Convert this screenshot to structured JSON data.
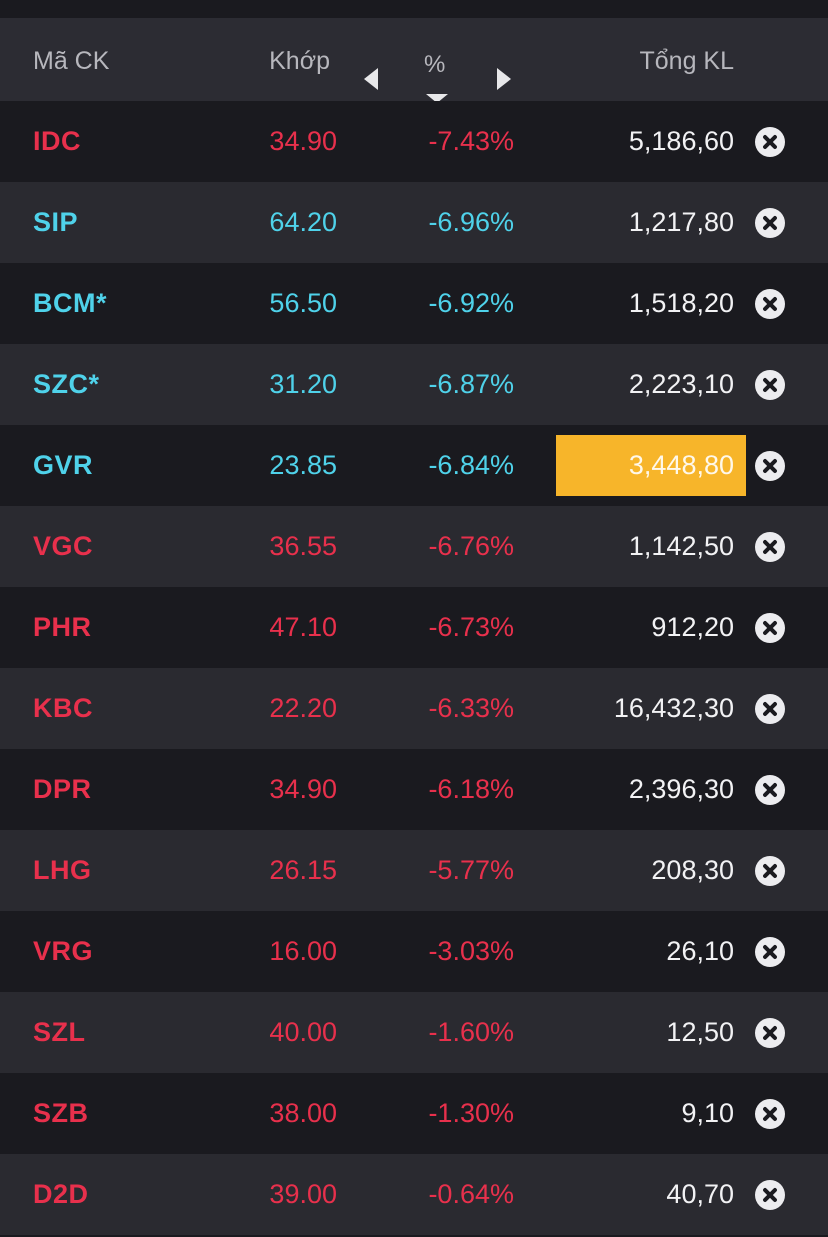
{
  "header": {
    "symbol": "Mã CK",
    "price": "Khớp",
    "percent": "%",
    "total": "Tổng KL"
  },
  "colors": {
    "down": "#e8304c",
    "floor": "#4fd2ea",
    "highlight": "#f7b52a"
  },
  "rows": [
    {
      "symbol": "IDC",
      "price": "34.90",
      "pct": "-7.43%",
      "total": "5,186,60",
      "status": "down"
    },
    {
      "symbol": "SIP",
      "price": "64.20",
      "pct": "-6.96%",
      "total": "1,217,80",
      "status": "floor"
    },
    {
      "symbol": "BCM*",
      "price": "56.50",
      "pct": "-6.92%",
      "total": "1,518,20",
      "status": "floor"
    },
    {
      "symbol": "SZC*",
      "price": "31.20",
      "pct": "-6.87%",
      "total": "2,223,10",
      "status": "floor"
    },
    {
      "symbol": "GVR",
      "price": "23.85",
      "pct": "-6.84%",
      "total": "3,448,80",
      "status": "floor",
      "highlighted": true
    },
    {
      "symbol": "VGC",
      "price": "36.55",
      "pct": "-6.76%",
      "total": "1,142,50",
      "status": "down"
    },
    {
      "symbol": "PHR",
      "price": "47.10",
      "pct": "-6.73%",
      "total": "912,20",
      "status": "down"
    },
    {
      "symbol": "KBC",
      "price": "22.20",
      "pct": "-6.33%",
      "total": "16,432,30",
      "status": "down"
    },
    {
      "symbol": "DPR",
      "price": "34.90",
      "pct": "-6.18%",
      "total": "2,396,30",
      "status": "down"
    },
    {
      "symbol": "LHG",
      "price": "26.15",
      "pct": "-5.77%",
      "total": "208,30",
      "status": "down"
    },
    {
      "symbol": "VRG",
      "price": "16.00",
      "pct": "-3.03%",
      "total": "26,10",
      "status": "down"
    },
    {
      "symbol": "SZL",
      "price": "40.00",
      "pct": "-1.60%",
      "total": "12,50",
      "status": "down"
    },
    {
      "symbol": "SZB",
      "price": "38.00",
      "pct": "-1.30%",
      "total": "9,10",
      "status": "down"
    },
    {
      "symbol": "D2D",
      "price": "39.00",
      "pct": "-0.64%",
      "total": "40,70",
      "status": "down"
    }
  ]
}
